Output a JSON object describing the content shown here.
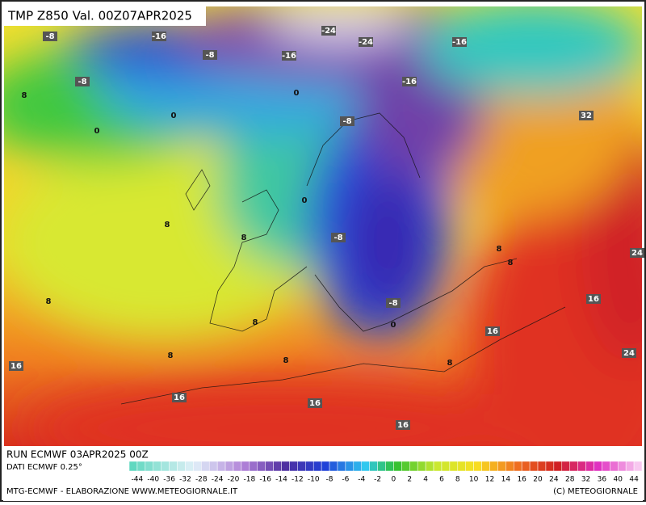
{
  "header": {
    "title": "TMP Z850 Val. 00Z07APR2025"
  },
  "contours": [
    -8,
    -16,
    -8,
    -16,
    -8,
    8,
    0,
    0,
    0,
    -24,
    -24,
    -16,
    -16,
    -8,
    32,
    0,
    8,
    8,
    -8,
    8,
    8,
    24,
    8,
    -8,
    0,
    16,
    8,
    16,
    24,
    8,
    8,
    8,
    16,
    16,
    16,
    16
  ],
  "footer": {
    "run": "RUN ECMWF 03APR2025 00Z",
    "source": "DATI ECMWF 0.25°",
    "credits": "MTG-ECMWF - ELABORAZIONE WWW.METEOGIORNALE.IT",
    "copyright": "(C) METEOGIORNALE"
  },
  "legend": {
    "ticks": [
      -44,
      -40,
      -36,
      -32,
      -28,
      -24,
      -20,
      -18,
      -16,
      -14,
      -12,
      -10,
      -8,
      -6,
      -4,
      -2,
      0,
      2,
      4,
      6,
      8,
      10,
      12,
      14,
      16,
      20,
      24,
      28,
      32,
      36,
      40,
      44
    ]
  }
}
